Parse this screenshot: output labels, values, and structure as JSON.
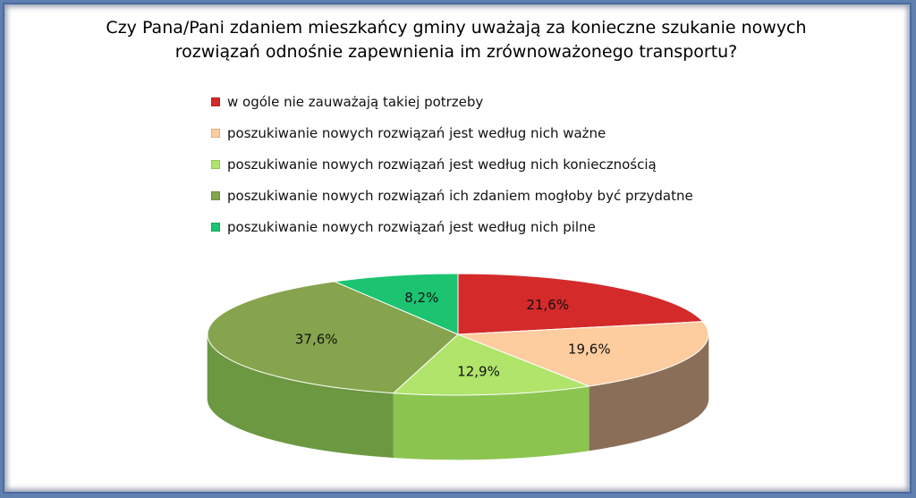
{
  "title_lines": [
    "Czy Pana/Pani zdaniem mieszkańcy gminy uważają za konieczne szukanie nowych",
    "rozwiązań odnośnie zapewnienia im zrównoważonego transportu?"
  ],
  "chart_data": {
    "type": "pie",
    "style": "3d",
    "legend_position": "top",
    "slices": [
      {
        "label": "w ogóle nie zauważają takiej potrzeby",
        "value": 21.6,
        "value_label": "21,6%",
        "color": "#d42a2a",
        "side_color": "#8e1c1c"
      },
      {
        "label": "poszukiwanie nowych rozwiązań jest według nich ważne",
        "value": 19.6,
        "value_label": "19,6%",
        "color": "#fdcd9f",
        "side_color": "#8b6e58"
      },
      {
        "label": "poszukiwanie nowych rozwiązań jest według nich koniecznością",
        "value": 12.9,
        "value_label": "12,9%",
        "color": "#b0e46a",
        "side_color": "#8cc450"
      },
      {
        "label": "poszukiwanie nowych rozwiązań ich zdaniem mogłoby być przydatne",
        "value": 37.6,
        "value_label": "37,6%",
        "color": "#86a44e",
        "side_color": "#6b9840"
      },
      {
        "label": "poszukiwanie nowych rozwiązań jest według nich pilne",
        "value": 8.2,
        "value_label": "8,2%",
        "color": "#1cc472",
        "side_color": "#139055"
      }
    ]
  }
}
